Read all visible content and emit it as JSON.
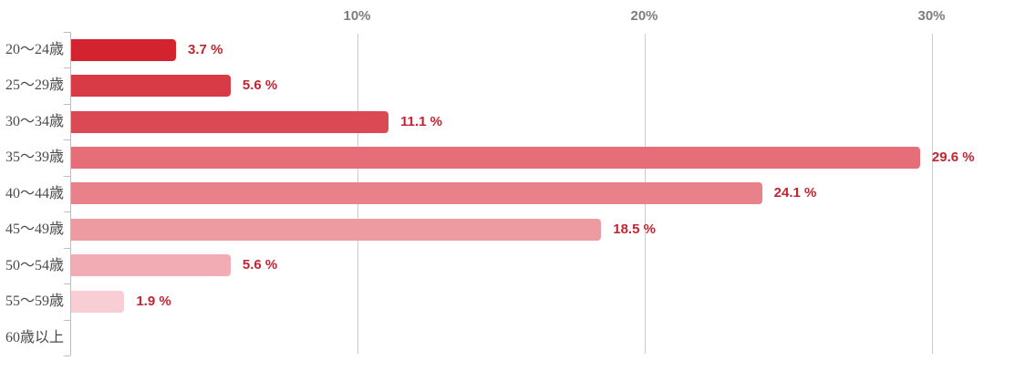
{
  "chart_data": {
    "type": "bar",
    "orientation": "horizontal",
    "title": "",
    "xlabel": "",
    "ylabel": "",
    "categories": [
      "20〜24歳",
      "25〜29歳",
      "30〜34歳",
      "35〜39歳",
      "40〜44歳",
      "45〜49歳",
      "50〜54歳",
      "55〜59歳",
      "60歳以上"
    ],
    "values": [
      3.7,
      5.6,
      11.1,
      29.6,
      24.1,
      18.5,
      5.6,
      1.9,
      0
    ],
    "value_labels": [
      "3.7 %",
      "5.6 %",
      "11.1 %",
      "29.6 %",
      "24.1 %",
      "18.5 %",
      "5.6 %",
      "1.9 %",
      ""
    ],
    "bar_colors": [
      "#d3232f",
      "#d83b46",
      "#db4a54",
      "#e56e78",
      "#e8818a",
      "#ee9aa1",
      "#f2adb4",
      "#f8cdd3",
      null
    ],
    "x_axis": {
      "position": "top",
      "ticks": [
        "10%",
        "20%",
        "30%"
      ],
      "tick_values": [
        10,
        20,
        30
      ],
      "min": 0,
      "max": 33.3
    },
    "grid": true,
    "legend": false,
    "colors": {
      "value_label": "#c42431",
      "tick_label": "#7d7d7d",
      "category_label": "#4a4a4a",
      "gridline": "#cccccc",
      "axis": "#b6bfc3",
      "background": "#ffffff"
    }
  }
}
